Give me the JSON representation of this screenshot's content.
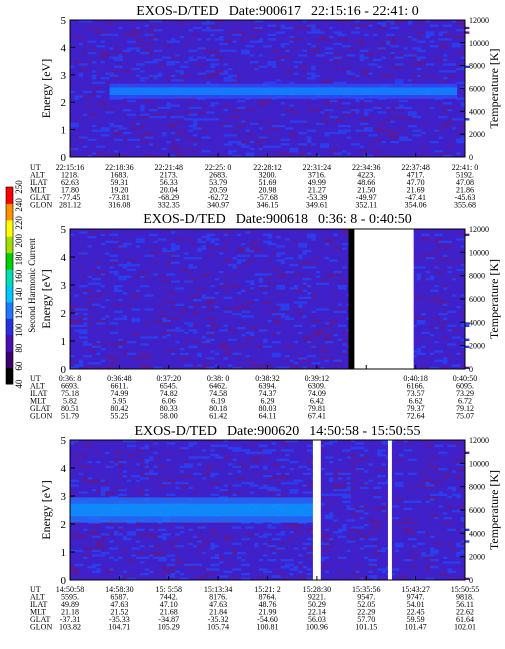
{
  "chart_data": {
    "type": "heatmap",
    "colorbar": {
      "label": "Second Harmonic Current",
      "ticks": [
        "40",
        "60",
        "80",
        "100",
        "120",
        "140",
        "160",
        "180",
        "200",
        "220",
        "240",
        "250"
      ],
      "colors": [
        "#000000",
        "#3a006e",
        "#4b10b0",
        "#2a30e0",
        "#1e78ff",
        "#00c8ff",
        "#00e0b0",
        "#00d000",
        "#a0e000",
        "#ffff00",
        "#ff9000",
        "#ff0000"
      ]
    },
    "panels": [
      {
        "title": "EXOS-D/TED",
        "date": "Date:900617",
        "time_range": "22:15:16 - 22:41: 0",
        "ylabel": "Energy [eV]",
        "yticks": [
          "0",
          "1",
          "2",
          "3",
          "4",
          "5"
        ],
        "ylim": [
          0,
          5
        ],
        "y2label": "Temperature [K]",
        "y2ticks": [
          "0",
          "2000",
          "4000",
          "6000",
          "8000",
          "10000",
          "12000"
        ],
        "y2lim": [
          0,
          12000
        ],
        "gaps": [],
        "band": {
          "from_col": 0.1,
          "to_col": 0.98,
          "center": 2.4,
          "width": 0.55,
          "color": "#2a50ff"
        },
        "ephemeris": {
          "labels": [
            "UT",
            "ALT",
            "ILAT",
            "MLT",
            "GLAT",
            "GLON"
          ],
          "columns": [
            [
              "22:15:16",
              "1218.",
              "62.63",
              "17.80",
              "-77.45",
              "281.12"
            ],
            [
              "22:18:36",
              "1683.",
              "59.31",
              "19.20",
              "-73.81",
              "316.08"
            ],
            [
              "22:21:48",
              "2173.",
              "56.33",
              "20.04",
              "-68.29",
              "332.35"
            ],
            [
              "22:25: 0",
              "2683.",
              "53.79",
              "20.59",
              "-62.72",
              "340.97"
            ],
            [
              "22:28:12",
              "3200.",
              "51.69",
              "20.98",
              "-57.68",
              "346.15"
            ],
            [
              "22:31:24",
              "3716.",
              "49.99",
              "21.27",
              "-53.39",
              "349.61"
            ],
            [
              "22:34:36",
              "4223.",
              "48.66",
              "21.50",
              "-49.97",
              "352.11"
            ],
            [
              "22:37:48",
              "4717.",
              "47.70",
              "21.69",
              "-47.41",
              "354.06"
            ],
            [
              "22:41: 0",
              "5192.",
              "47.08",
              "21.86",
              "-45.63",
              "355.68"
            ]
          ]
        }
      },
      {
        "title": "EXOS-D/TED",
        "date": "Date:900618",
        "time_range": "0:36: 8 - 0:40:50",
        "ylabel": "Energy [eV]",
        "yticks": [
          "0",
          "1",
          "2",
          "3",
          "4",
          "5"
        ],
        "ylim": [
          0,
          5
        ],
        "y2label": "Temperature [K]",
        "y2ticks": [
          "0",
          "2000",
          "4000",
          "6000",
          "8000",
          "10000",
          "12000"
        ],
        "y2lim": [
          0,
          12000
        ],
        "gaps": [
          {
            "from": 0.705,
            "to": 0.72,
            "fill": "#000000"
          },
          {
            "from": 0.72,
            "to": 0.87,
            "fill": "#ffffff"
          }
        ],
        "band": null,
        "ephemeris": {
          "labels": [
            "UT",
            "ALT",
            "ILAT",
            "MLT",
            "GLAT",
            "GLON"
          ],
          "columns": [
            [
              "0:36: 8",
              "6693.",
              "75.18",
              "5.82",
              "80.51",
              "51.79"
            ],
            [
              "0:36:48",
              "6611.",
              "74.99",
              "5.95",
              "80.42",
              "55.25"
            ],
            [
              "0:37:20",
              "6545.",
              "74.82",
              "6.06",
              "80.33",
              "58.00"
            ],
            [
              "0:38: 0",
              "6462.",
              "74.58",
              "6.19",
              "80.18",
              "61.42"
            ],
            [
              "0:38:32",
              "6394.",
              "74.37",
              "6.29",
              "80.03",
              "64.11"
            ],
            [
              "0:39:12",
              "6309.",
              "74.09",
              "6.42",
              "79.81",
              "67.41"
            ],
            [
              "",
              "",
              "",
              "",
              "",
              ""
            ],
            [
              "0:40:18",
              "6166.",
              "73.57",
              "6.62",
              "79.37",
              "72.64"
            ],
            [
              "0:40:50",
              "6095.",
              "73.29",
              "6.72",
              "79.12",
              "75.07"
            ]
          ]
        }
      },
      {
        "title": "EXOS-D/TED",
        "date": "Date:900620",
        "time_range": "14:50:58 - 15:50:55",
        "ylabel": "Energy [eV]",
        "yticks": [
          "0",
          "1",
          "2",
          "3",
          "4",
          "5"
        ],
        "ylim": [
          0,
          5
        ],
        "y2label": "Temperature [K]",
        "y2ticks": [
          "0",
          "2000",
          "4000",
          "6000",
          "8000",
          "10000",
          "12000"
        ],
        "y2lim": [
          0,
          12000
        ],
        "gaps": [
          {
            "from": 0.615,
            "to": 0.635,
            "fill": "#ffffff"
          },
          {
            "from": 0.805,
            "to": 0.815,
            "fill": "#ffffff"
          }
        ],
        "band": {
          "from_col": 0.0,
          "to_col": 0.62,
          "center": 2.5,
          "width": 0.9,
          "color": "#1e78ff"
        },
        "ephemeris": {
          "labels": [
            "UT",
            "ALT",
            "ILAT",
            "MLT",
            "GLAT",
            "GLON"
          ],
          "columns": [
            [
              "14:50:58",
              "5595.",
              "49.89",
              "21.18",
              "-37.31",
              "103.82"
            ],
            [
              "14:58:30",
              "6587.",
              "47.63",
              "21.52",
              "-35.33",
              "104.71"
            ],
            [
              "15: 5:58",
              "7442.",
              "47.10",
              "21.68",
              "-34.87",
              "105.29"
            ],
            [
              "15:13:34",
              "8176.",
              "47.63",
              "21.84",
              "-35.32",
              "105.74"
            ],
            [
              "15:21: 2",
              "8764.",
              "48.76",
              "21.99",
              "-54.60",
              "100.81"
            ],
            [
              "15:28:30",
              "9221.",
              "50.29",
              "22.14",
              "56.03",
              "100.96"
            ],
            [
              "15:35:56",
              "9547.",
              "52.05",
              "22.29",
              "57.70",
              "101.15"
            ],
            [
              "15:43:27",
              "9747.",
              "54.01",
              "22.45",
              "59.59",
              "101.47"
            ],
            [
              "15:50:55",
              "9818.",
              "56.11",
              "22.62",
              "61.64",
              "102.01"
            ]
          ]
        }
      }
    ]
  }
}
